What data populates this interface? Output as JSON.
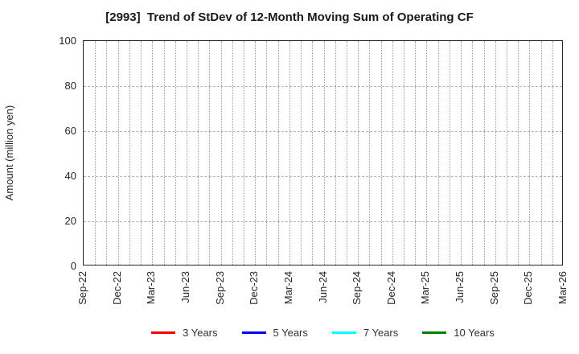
{
  "chart_data": {
    "type": "line",
    "title": "[2993]  Trend of StDev of 12-Month Moving Sum of Operating CF",
    "ylabel": "Amount (million yen)",
    "ylim": [
      0,
      100
    ],
    "yticks": [
      0,
      20,
      40,
      60,
      80,
      100
    ],
    "x_tick_labels": [
      "Sep-22",
      "Dec-22",
      "Mar-23",
      "Jun-23",
      "Sep-23",
      "Dec-23",
      "Mar-24",
      "Jun-24",
      "Sep-24",
      "Dec-24",
      "Mar-25",
      "Jun-25",
      "Sep-25",
      "Dec-25",
      "Mar-26"
    ],
    "x_minor_divisions_per_tick": 3,
    "grid": true,
    "legend_position": "bottom",
    "series": [
      {
        "name": "3 Years",
        "color": "#ff0000",
        "values": []
      },
      {
        "name": "5 Years",
        "color": "#0000ff",
        "values": []
      },
      {
        "name": "7 Years",
        "color": "#00ffff",
        "values": []
      },
      {
        "name": "10 Years",
        "color": "#008000",
        "values": []
      }
    ]
  }
}
